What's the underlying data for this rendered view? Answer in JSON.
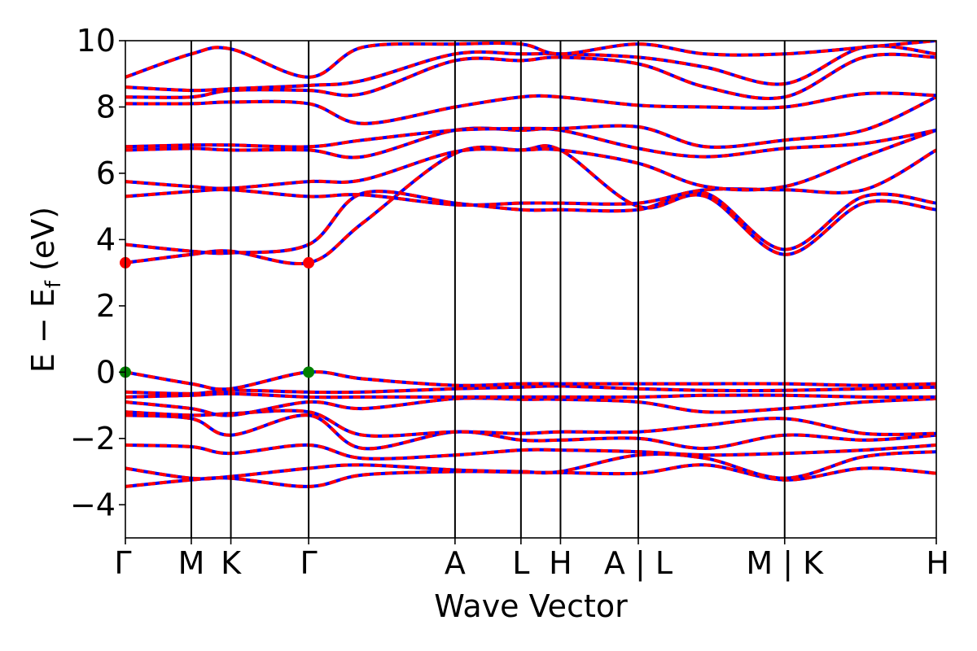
{
  "chart_data": {
    "type": "line",
    "xlabel": "Wave Vector",
    "ylabel_main": "E − E",
    "ylabel_sub": "f",
    "ylabel_unit": " (eV)",
    "ylim": [
      -5,
      10
    ],
    "yticks": [
      {
        "value": 10,
        "label": "10"
      },
      {
        "value": 8,
        "label": "8"
      },
      {
        "value": 6,
        "label": "6"
      },
      {
        "value": 4,
        "label": "4"
      },
      {
        "value": 2,
        "label": "2"
      },
      {
        "value": 0,
        "label": "0"
      },
      {
        "value": -2,
        "label": "−2"
      },
      {
        "value": -4,
        "label": "−4"
      }
    ],
    "xlim": [
      0,
      12.3
    ],
    "kpoints": [
      {
        "x": 0.0,
        "label": "Γ"
      },
      {
        "x": 1.0,
        "label": "M"
      },
      {
        "x": 1.6,
        "label": "K"
      },
      {
        "x": 2.78,
        "label": "Γ"
      },
      {
        "x": 5.0,
        "label": "A"
      },
      {
        "x": 6.0,
        "label": "L"
      },
      {
        "x": 6.6,
        "label": "H"
      },
      {
        "x": 7.78,
        "label": "A | L"
      },
      {
        "x": 10.0,
        "label": "M | K"
      },
      {
        "x": 12.3,
        "label": "H"
      }
    ],
    "vlines": [
      1.0,
      1.6,
      2.78,
      5.0,
      6.0,
      6.6,
      7.78,
      10.0
    ],
    "grid": false,
    "legend": "none",
    "colors": {
      "series_a": "#0000ff",
      "series_b": "#ff0000",
      "vbm": "#008000",
      "cbm": "#ff0000",
      "axes": "#000000"
    },
    "bands": [
      {
        "x": [
          0,
          1.0,
          1.6,
          2.78,
          3.6,
          5.0,
          6.0,
          6.6,
          7.78,
          8.8,
          10.0,
          11.2,
          12.3
        ],
        "y": [
          -3.45,
          -3.25,
          -3.2,
          -3.45,
          -3.1,
          -3.0,
          -3.02,
          -3.03,
          -3.05,
          -2.8,
          -3.25,
          -2.9,
          -3.05
        ]
      },
      {
        "x": [
          0,
          1.0,
          1.6,
          2.78,
          3.6,
          5.0,
          6.0,
          6.6,
          7.78,
          8.8,
          10.0,
          11.2,
          12.3
        ],
        "y": [
          -2.9,
          -3.2,
          -3.15,
          -2.9,
          -2.8,
          -2.95,
          -3.0,
          -3.0,
          -2.5,
          -2.6,
          -3.2,
          -2.55,
          -2.4
        ]
      },
      {
        "x": [
          0,
          1.0,
          1.6,
          2.78,
          3.6,
          5.0,
          6.0,
          6.6,
          7.78,
          8.8,
          10.0,
          11.2,
          12.3
        ],
        "y": [
          -2.2,
          -2.25,
          -2.45,
          -2.2,
          -2.6,
          -2.5,
          -2.35,
          -2.35,
          -2.4,
          -2.5,
          -2.45,
          -2.35,
          -2.2
        ]
      },
      {
        "x": [
          0,
          1.0,
          1.6,
          2.78,
          3.6,
          5.0,
          6.0,
          6.6,
          7.78,
          8.8,
          10.0,
          11.2,
          12.3
        ],
        "y": [
          -1.3,
          -1.4,
          -1.9,
          -1.3,
          -2.3,
          -1.8,
          -2.05,
          -2.05,
          -2.0,
          -2.3,
          -1.9,
          -2.05,
          -1.9
        ]
      },
      {
        "x": [
          0,
          1.0,
          1.6,
          2.78,
          3.6,
          5.0,
          6.0,
          6.6,
          7.78,
          8.8,
          10.0,
          11.2,
          12.3
        ],
        "y": [
          -1.2,
          -1.3,
          -1.25,
          -1.2,
          -1.9,
          -1.8,
          -1.85,
          -1.8,
          -1.8,
          -1.6,
          -1.4,
          -1.85,
          -1.85
        ]
      },
      {
        "x": [
          0,
          1.0,
          1.6,
          2.78,
          3.6,
          5.0,
          6.0,
          6.6,
          7.78,
          8.8,
          10.0,
          11.2,
          12.3
        ],
        "y": [
          -0.9,
          -1.1,
          -1.3,
          -0.9,
          -1.1,
          -0.8,
          -0.82,
          -0.82,
          -0.9,
          -1.2,
          -1.1,
          -0.9,
          -0.8
        ]
      },
      {
        "x": [
          0,
          1.0,
          1.6,
          2.78,
          3.6,
          5.0,
          6.0,
          6.6,
          7.78,
          8.8,
          10.0,
          11.2,
          12.3
        ],
        "y": [
          -0.75,
          -0.7,
          -0.65,
          -0.75,
          -0.75,
          -0.75,
          -0.75,
          -0.75,
          -0.75,
          -0.7,
          -0.7,
          -0.75,
          -0.75
        ]
      },
      {
        "x": [
          0,
          1.0,
          1.6,
          2.78,
          3.6,
          5.0,
          6.0,
          6.6,
          7.78,
          8.8,
          10.0,
          11.2,
          12.3
        ],
        "y": [
          -0.6,
          -0.65,
          -0.55,
          -0.6,
          -0.6,
          -0.5,
          -0.45,
          -0.42,
          -0.5,
          -0.55,
          -0.55,
          -0.5,
          -0.45
        ]
      },
      {
        "x": [
          0,
          1.0,
          1.6,
          2.78,
          3.6,
          5.0,
          6.0,
          6.6,
          7.78,
          8.8,
          10.0,
          11.2,
          12.3
        ],
        "y": [
          0.0,
          -0.35,
          -0.5,
          0.0,
          -0.2,
          -0.4,
          -0.35,
          -0.35,
          -0.35,
          -0.35,
          -0.35,
          -0.4,
          -0.35
        ]
      },
      {
        "x": [
          0,
          1.0,
          1.6,
          2.78,
          3.6,
          5.0,
          6.0,
          6.6,
          7.78,
          8.8,
          10.0,
          11.2,
          12.3
        ],
        "y": [
          3.3,
          3.55,
          3.65,
          3.3,
          4.5,
          6.6,
          6.7,
          6.7,
          5.0,
          5.3,
          3.55,
          5.1,
          4.9
        ]
      },
      {
        "x": [
          0,
          1.0,
          1.6,
          2.78,
          3.6,
          5.0,
          6.0,
          6.6,
          7.78,
          8.8,
          10.0,
          11.2,
          12.3
        ],
        "y": [
          3.85,
          3.65,
          3.6,
          3.85,
          5.4,
          5.1,
          4.9,
          4.9,
          4.9,
          5.4,
          3.7,
          5.3,
          5.1
        ]
      },
      {
        "x": [
          0,
          1.0,
          1.6,
          2.78,
          3.6,
          5.0,
          6.0,
          6.6,
          7.78,
          8.8,
          10.0,
          11.2,
          12.3
        ],
        "y": [
          5.3,
          5.45,
          5.5,
          5.3,
          5.35,
          5.05,
          5.1,
          5.1,
          5.1,
          5.5,
          5.5,
          5.5,
          6.7
        ]
      },
      {
        "x": [
          0,
          1.0,
          1.6,
          2.78,
          3.6,
          5.0,
          6.0,
          6.6,
          7.78,
          8.8,
          10.0,
          11.2,
          12.3
        ],
        "y": [
          5.75,
          5.6,
          5.55,
          5.75,
          5.8,
          6.65,
          6.7,
          6.7,
          6.3,
          5.6,
          5.6,
          6.5,
          7.3
        ]
      },
      {
        "x": [
          0,
          1.0,
          1.6,
          2.78,
          3.6,
          5.0,
          6.0,
          6.6,
          7.78,
          8.8,
          10.0,
          11.2,
          12.3
        ],
        "y": [
          6.7,
          6.75,
          6.7,
          6.7,
          6.5,
          7.3,
          7.3,
          7.3,
          6.75,
          6.5,
          6.75,
          6.9,
          7.3
        ]
      },
      {
        "x": [
          0,
          1.0,
          1.6,
          2.78,
          3.6,
          5.0,
          6.0,
          6.6,
          7.78,
          8.8,
          10.0,
          11.2,
          12.3
        ],
        "y": [
          6.8,
          6.85,
          6.85,
          6.8,
          7.0,
          7.3,
          7.35,
          7.35,
          7.4,
          6.8,
          7.0,
          7.3,
          8.3
        ]
      },
      {
        "x": [
          0,
          1.0,
          1.6,
          2.78,
          3.6,
          5.0,
          6.0,
          6.6,
          7.78,
          8.8,
          10.0,
          11.2,
          12.3
        ],
        "y": [
          8.1,
          8.1,
          8.15,
          8.1,
          7.5,
          8.0,
          8.3,
          8.3,
          8.05,
          8.0,
          8.0,
          8.4,
          8.35
        ]
      },
      {
        "x": [
          0,
          1.0,
          1.6,
          2.78,
          3.6,
          5.0,
          6.0,
          6.6,
          7.78,
          8.8,
          10.0,
          11.2,
          12.3
        ],
        "y": [
          8.3,
          8.3,
          8.5,
          8.5,
          8.4,
          9.4,
          9.4,
          9.5,
          9.3,
          8.6,
          8.3,
          9.5,
          9.5
        ]
      },
      {
        "x": [
          0,
          1.0,
          1.6,
          2.78,
          3.6,
          5.0,
          6.0,
          6.6,
          7.78,
          8.8,
          10.0,
          11.2,
          12.3
        ],
        "y": [
          8.6,
          8.5,
          8.55,
          8.65,
          8.8,
          9.6,
          9.6,
          9.6,
          9.5,
          9.2,
          8.7,
          9.8,
          9.6
        ]
      },
      {
        "x": [
          0,
          1.0,
          1.6,
          2.78,
          3.6,
          5.0,
          6.0,
          6.6,
          7.78,
          8.8,
          10.0,
          11.2,
          12.3
        ],
        "y": [
          8.9,
          9.6,
          9.75,
          8.9,
          9.8,
          9.9,
          9.9,
          9.6,
          9.9,
          9.6,
          9.6,
          9.8,
          10.0
        ]
      }
    ],
    "extrema": [
      {
        "x": 0.0,
        "y": 3.3,
        "kind": "cbm"
      },
      {
        "x": 2.78,
        "y": 3.3,
        "kind": "cbm"
      },
      {
        "x": 0.0,
        "y": 0.0,
        "kind": "vbm"
      },
      {
        "x": 2.78,
        "y": 0.0,
        "kind": "vbm"
      }
    ]
  }
}
